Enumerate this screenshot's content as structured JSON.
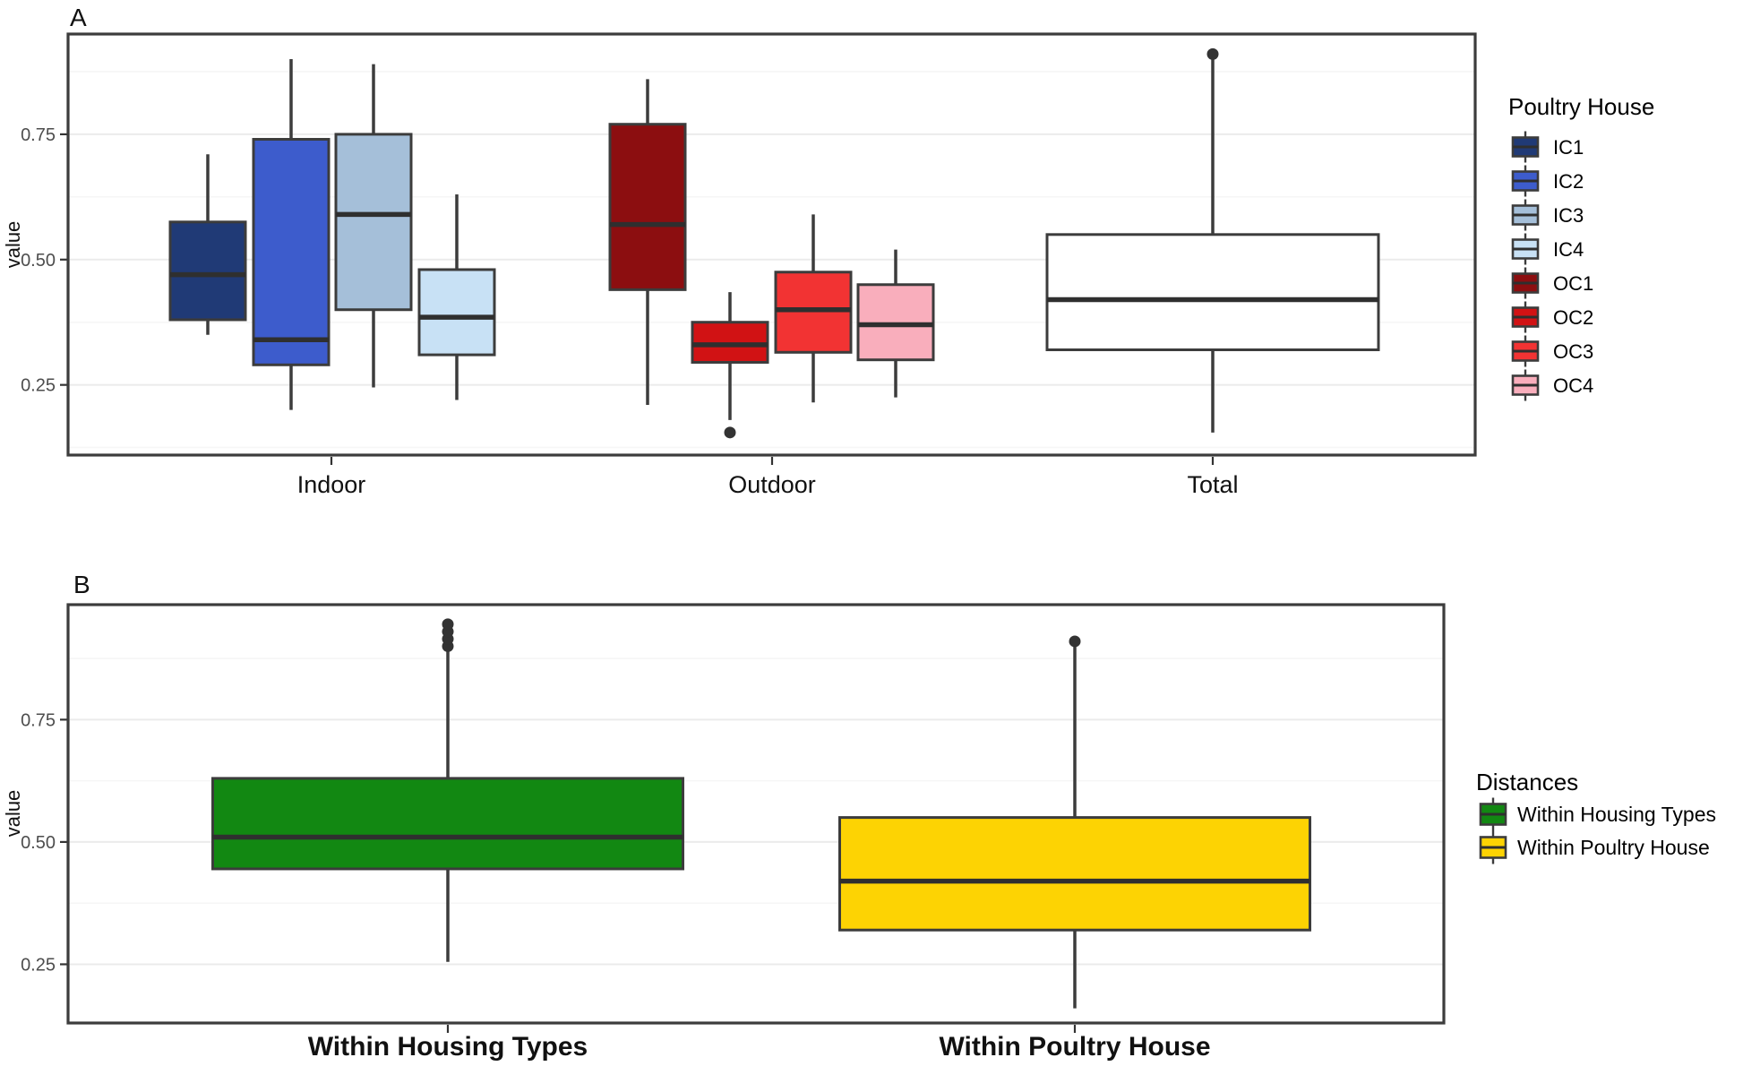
{
  "figure_title": "",
  "chart_data": [
    {
      "type": "boxplot",
      "panel_label": "A",
      "ylabel": "value",
      "yticks": [
        0.75,
        0.5,
        0.25
      ],
      "ytick_labels": [
        "0.75",
        "0.50",
        "0.25"
      ],
      "ylim": [
        0.11,
        0.95
      ],
      "grid": {
        "major": [
          0.25,
          0.5,
          0.75
        ],
        "minor": [
          0.125,
          0.375,
          0.625,
          0.875
        ],
        "major_color": "#ebebeb",
        "minor_color": "#f6f6f6"
      },
      "categories": [
        "Indoor",
        "Outdoor",
        "Total"
      ],
      "legend": {
        "title": "Poultry House",
        "position": "right"
      },
      "series": [
        {
          "name": "IC1",
          "group": "Indoor",
          "color": "#203a76",
          "whisker_low": 0.35,
          "q1": 0.38,
          "median": 0.47,
          "q3": 0.575,
          "whisker_high": 0.71,
          "outliers": []
        },
        {
          "name": "IC2",
          "group": "Indoor",
          "color": "#3d5ccc",
          "whisker_low": 0.2,
          "q1": 0.29,
          "median": 0.34,
          "q3": 0.74,
          "whisker_high": 0.9,
          "outliers": []
        },
        {
          "name": "IC3",
          "group": "Indoor",
          "color": "#a5bfd9",
          "whisker_low": 0.245,
          "q1": 0.4,
          "median": 0.59,
          "q3": 0.75,
          "whisker_high": 0.89,
          "outliers": []
        },
        {
          "name": "IC4",
          "group": "Indoor",
          "color": "#c8e1f5",
          "whisker_low": 0.22,
          "q1": 0.31,
          "median": 0.385,
          "q3": 0.48,
          "whisker_high": 0.63,
          "outliers": []
        },
        {
          "name": "OC1",
          "group": "Outdoor",
          "color": "#8c0e10",
          "whisker_low": 0.21,
          "q1": 0.44,
          "median": 0.57,
          "q3": 0.77,
          "whisker_high": 0.86,
          "outliers": []
        },
        {
          "name": "OC2",
          "group": "Outdoor",
          "color": "#d11214",
          "whisker_low": 0.18,
          "q1": 0.295,
          "median": 0.33,
          "q3": 0.375,
          "whisker_high": 0.435,
          "outliers": [
            0.155
          ]
        },
        {
          "name": "OC3",
          "group": "Outdoor",
          "color": "#f23333",
          "whisker_low": 0.215,
          "q1": 0.315,
          "median": 0.4,
          "q3": 0.475,
          "whisker_high": 0.59,
          "outliers": []
        },
        {
          "name": "OC4",
          "group": "Outdoor",
          "color": "#f9aebc",
          "whisker_low": 0.225,
          "q1": 0.3,
          "median": 0.37,
          "q3": 0.45,
          "whisker_high": 0.52,
          "outliers": []
        },
        {
          "name": "Total",
          "group": "Total",
          "color": "#ffffff",
          "whisker_low": 0.155,
          "q1": 0.32,
          "median": 0.42,
          "q3": 0.55,
          "whisker_high": 0.9,
          "outliers": [
            0.91
          ],
          "legend": false
        }
      ]
    },
    {
      "type": "boxplot",
      "panel_label": "B",
      "ylabel": "value",
      "yticks": [
        0.75,
        0.5,
        0.25
      ],
      "ytick_labels": [
        "0.75",
        "0.50",
        "0.25"
      ],
      "ylim": [
        0.13,
        0.985
      ],
      "grid": {
        "major": [
          0.25,
          0.5,
          0.75
        ],
        "minor": [
          0.375,
          0.625,
          0.875
        ],
        "major_color": "#ebebeb",
        "minor_color": "#f6f6f6"
      },
      "categories": [
        "Within Housing Types",
        "Within Poultry House"
      ],
      "legend": {
        "title": "Distances",
        "position": "right"
      },
      "series": [
        {
          "name": "Within Housing Types",
          "group": "Within Housing Types",
          "color": "#128812",
          "whisker_low": 0.255,
          "q1": 0.445,
          "median": 0.51,
          "q3": 0.63,
          "whisker_high": 0.895,
          "outliers": [
            0.9,
            0.915,
            0.93,
            0.945
          ]
        },
        {
          "name": "Within Poultry House",
          "group": "Within Poultry House",
          "color": "#fdd303",
          "whisker_low": 0.16,
          "q1": 0.32,
          "median": 0.42,
          "q3": 0.55,
          "whisker_high": 0.9,
          "outliers": [
            0.91
          ]
        }
      ]
    }
  ],
  "style_colors": {
    "box_stroke": "#3c3c3c",
    "median_stroke": "#2f2f2f",
    "whisker_stroke": "#3c3c3c",
    "panel_border": "#3c3c3c",
    "outlier_fill": "#333333",
    "tick_label": "#4d4d4d"
  }
}
